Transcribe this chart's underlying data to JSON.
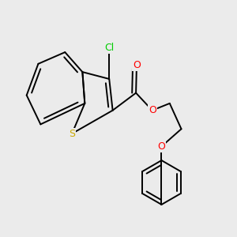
{
  "background_color": "#ebebeb",
  "atom_colors": {
    "Cl": "#00cc00",
    "O": "#ff0000",
    "S": "#ccaa00"
  },
  "bond_color": "#000000",
  "bond_width": 1.4,
  "figsize": [
    3.0,
    3.0
  ],
  "dpi": 100
}
